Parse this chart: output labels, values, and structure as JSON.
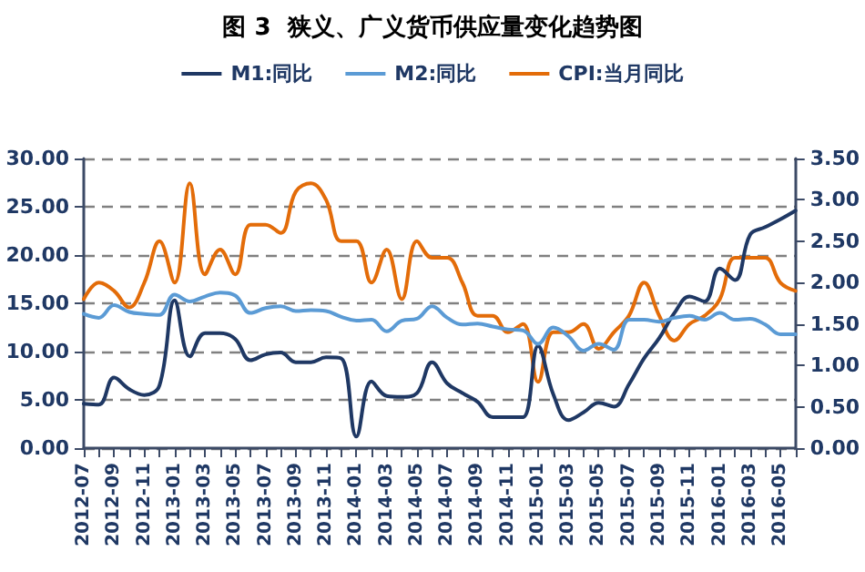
{
  "chart_data": {
    "type": "line",
    "title": "图 3  狭义、广义货币供应量变化趋势图",
    "categories": [
      "2012-07",
      null,
      "2012-09",
      null,
      "2012-11",
      null,
      "2013-01",
      null,
      "2013-03",
      null,
      "2013-05",
      null,
      "2013-07",
      null,
      "2013-09",
      null,
      "2013-11",
      null,
      "2014-01",
      null,
      "2014-03",
      null,
      "2014-05",
      null,
      "2014-07",
      null,
      "2014-09",
      null,
      "2014-11",
      null,
      "2015-01",
      null,
      "2015-03",
      null,
      "2015-05",
      null,
      "2015-07",
      null,
      "2015-09",
      null,
      "2015-11",
      null,
      "2016-01",
      null,
      "2016-03",
      null,
      "2016-05",
      null
    ],
    "series": [
      {
        "name": "M1:同比",
        "color": "#1f3864",
        "values": [
          4.6,
          4.5,
          7.3,
          6.1,
          5.5,
          6.5,
          15.3,
          9.5,
          11.9,
          11.9,
          11.3,
          9.1,
          9.7,
          9.9,
          8.9,
          8.9,
          9.4,
          9.3,
          1.2,
          6.9,
          5.4,
          5.3,
          5.7,
          8.9,
          6.7,
          5.7,
          4.8,
          3.2,
          3.2,
          3.2,
          10.6,
          5.6,
          2.9,
          3.7,
          4.7,
          4.3,
          6.6,
          9.3,
          11.4,
          14.0,
          15.7,
          15.2,
          18.6,
          17.4,
          22.1,
          22.9,
          23.7,
          24.6
        ]
      },
      {
        "name": "M2:同比",
        "color": "#5b9bd5",
        "values": [
          13.9,
          13.5,
          14.8,
          14.1,
          13.9,
          13.8,
          15.9,
          15.2,
          15.7,
          16.1,
          15.8,
          14.0,
          14.5,
          14.7,
          14.2,
          14.3,
          14.2,
          13.6,
          13.2,
          13.3,
          12.1,
          13.2,
          13.4,
          14.7,
          13.5,
          12.8,
          12.9,
          12.6,
          12.3,
          12.2,
          10.8,
          12.5,
          11.6,
          10.1,
          10.8,
          10.2,
          13.3,
          13.3,
          13.1,
          13.5,
          13.7,
          13.3,
          14.0,
          13.3,
          13.4,
          12.8,
          11.8,
          11.8
        ]
      },
      {
        "name": "CPI:当月同比",
        "color": "#e36c09",
        "axis": "y2",
        "values": [
          1.8,
          2.0,
          1.9,
          1.7,
          2.0,
          2.5,
          2.0,
          3.2,
          2.1,
          2.4,
          2.1,
          2.7,
          2.7,
          2.6,
          3.1,
          3.2,
          3.0,
          2.5,
          2.5,
          2.0,
          2.4,
          1.8,
          2.5,
          2.3,
          2.3,
          2.0,
          1.6,
          1.6,
          1.4,
          1.5,
          0.8,
          1.4,
          1.4,
          1.5,
          1.2,
          1.4,
          1.6,
          2.0,
          1.6,
          1.3,
          1.5,
          1.6,
          1.8,
          2.3,
          2.3,
          2.3,
          2.0,
          1.9
        ]
      }
    ],
    "ylim": [
      0,
      30
    ],
    "yticks": [
      {
        "value": 0,
        "label": "0.00"
      },
      {
        "value": 5,
        "label": "5.00"
      },
      {
        "value": 10,
        "label": "10.00"
      },
      {
        "value": 15,
        "label": "15.00"
      },
      {
        "value": 20,
        "label": "20.00"
      },
      {
        "value": 25,
        "label": "25.00"
      },
      {
        "value": 30,
        "label": "30.00"
      }
    ],
    "y2lim": [
      0,
      3.5
    ],
    "y2ticks": [
      {
        "value": 0,
        "label": "0.00"
      },
      {
        "value": 0.5,
        "label": "0.50"
      },
      {
        "value": 1,
        "label": "1.00"
      },
      {
        "value": 1.5,
        "label": "1.50"
      },
      {
        "value": 2,
        "label": "2.00"
      },
      {
        "value": 2.5,
        "label": "2.50"
      },
      {
        "value": 3,
        "label": "3.00"
      },
      {
        "value": 3.5,
        "label": "3.50"
      }
    ],
    "grid": "y",
    "legend": "top",
    "marker": "none",
    "line_style": "solid"
  }
}
